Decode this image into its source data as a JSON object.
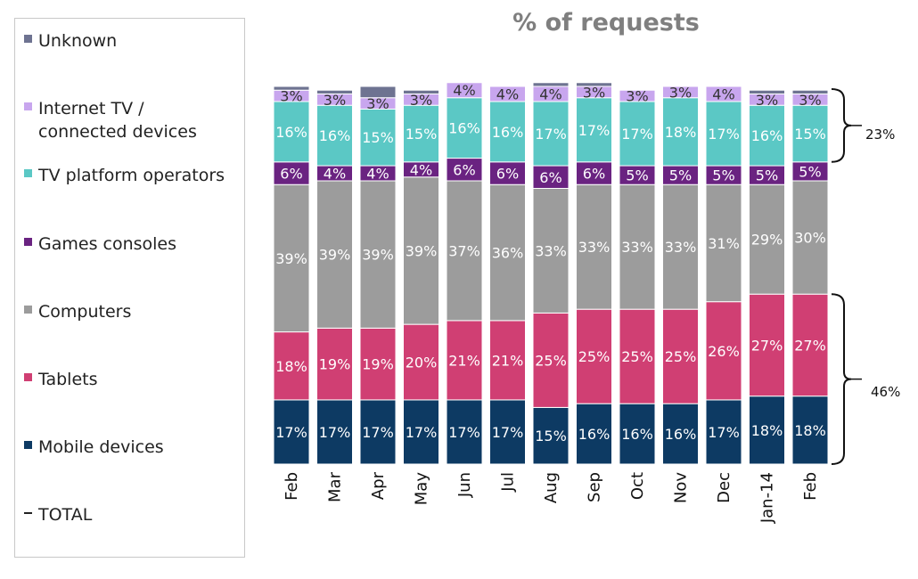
{
  "chart_data": {
    "type": "bar",
    "stacked": true,
    "title": "% of requests",
    "categories": [
      "Feb",
      "Mar",
      "Apr",
      "May",
      "Jun",
      "Jul",
      "Aug",
      "Sep",
      "Oct",
      "Nov",
      "Dec",
      "Jan-14",
      "Feb"
    ],
    "ylim": [
      0,
      100
    ],
    "series": [
      {
        "name": "Mobile devices",
        "color": "#0d3a63",
        "values": [
          17,
          17,
          17,
          17,
          17,
          17,
          15,
          16,
          16,
          16,
          17,
          18,
          18
        ]
      },
      {
        "name": "Tablets",
        "color": "#d03f73",
        "values": [
          18,
          19,
          19,
          20,
          21,
          21,
          25,
          25,
          25,
          25,
          26,
          27,
          27
        ]
      },
      {
        "name": "Computers",
        "color": "#9c9c9c",
        "values": [
          39,
          39,
          39,
          39,
          37,
          36,
          33,
          33,
          33,
          33,
          31,
          29,
          30
        ]
      },
      {
        "name": "Games consoles",
        "color": "#6a2381",
        "values": [
          6,
          4,
          4,
          4,
          6,
          6,
          6,
          6,
          5,
          5,
          5,
          5,
          5
        ]
      },
      {
        "name": "TV platform operators",
        "color": "#5bc8c5",
        "values": [
          16,
          16,
          15,
          15,
          16,
          16,
          17,
          17,
          17,
          18,
          17,
          16,
          15
        ]
      },
      {
        "name": "Internet TV / connected devices",
        "color": "#c8a6ee",
        "values": [
          3,
          3,
          3,
          3,
          4,
          4,
          4,
          3,
          3,
          3,
          4,
          3,
          3
        ]
      },
      {
        "name": "Unknown",
        "color": "#6e7391",
        "values": [
          1,
          1,
          3,
          1,
          0,
          0,
          1,
          1,
          0,
          0,
          0,
          1,
          1
        ]
      }
    ],
    "legend": {
      "position": "left",
      "items": [
        {
          "label": "Unknown",
          "color": "#6e7391"
        },
        {
          "label": "Internet TV /\nconnected devices",
          "color": "#c8a6ee"
        },
        {
          "label": "TV platform operators",
          "color": "#5bc8c5"
        },
        {
          "label": "Games consoles",
          "color": "#6a2381"
        },
        {
          "label": "Computers",
          "color": "#9c9c9c"
        },
        {
          "label": "Tablets",
          "color": "#d03f73"
        },
        {
          "label": "Mobile devices",
          "color": "#0d3a63"
        },
        {
          "label": "TOTAL",
          "color": "#222222",
          "marker": "dash"
        }
      ]
    },
    "annotations": [
      {
        "label": "23%",
        "spans": [
          "TV platform operators",
          "Internet TV / connected devices",
          "Unknown"
        ]
      },
      {
        "label": "46%",
        "spans": [
          "Mobile devices",
          "Tablets"
        ]
      }
    ],
    "data_label_suffix": "%",
    "grid": false
  }
}
